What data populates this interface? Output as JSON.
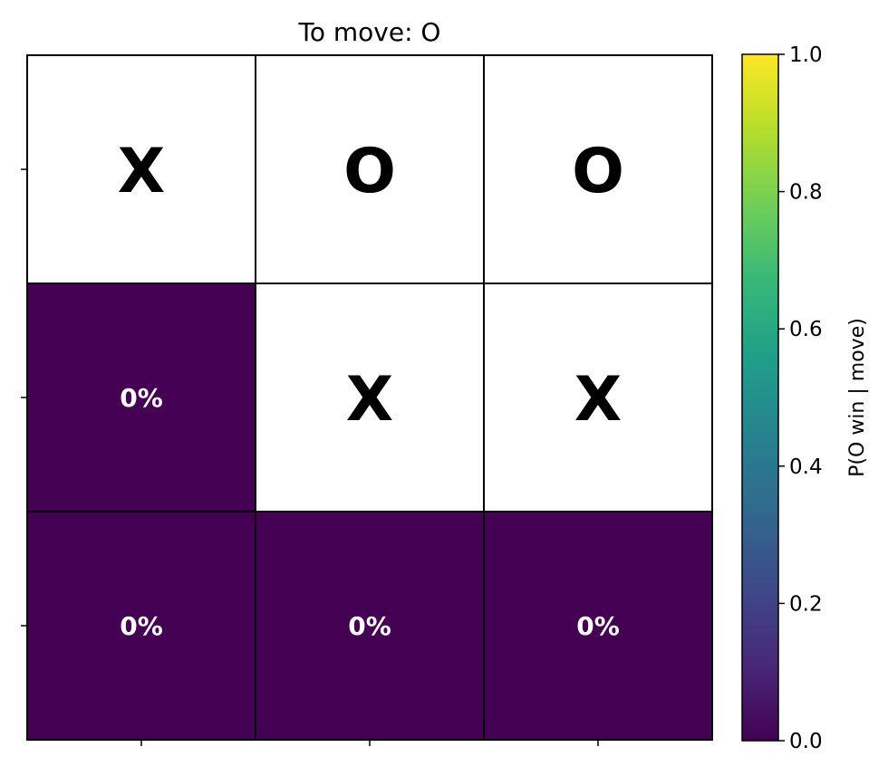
{
  "title": "To move: O",
  "colorbar": {
    "label": "P(O win | move)",
    "ticks": [
      "0.0",
      "0.2",
      "0.4",
      "0.6",
      "0.8",
      "1.0"
    ],
    "range": [
      0,
      1
    ],
    "colormap": "viridis",
    "stops": [
      "#440154",
      "#482878",
      "#3e4989",
      "#31688e",
      "#26828e",
      "#1f9e89",
      "#35b779",
      "#6ece58",
      "#b5de2b",
      "#fde725"
    ]
  },
  "board": {
    "empty_color": "#440154",
    "occupied_color": "#ffffff",
    "cells": [
      {
        "row": 0,
        "col": 0,
        "mark": "X",
        "prob": null,
        "label": ""
      },
      {
        "row": 0,
        "col": 1,
        "mark": "O",
        "prob": null,
        "label": ""
      },
      {
        "row": 0,
        "col": 2,
        "mark": "O",
        "prob": null,
        "label": ""
      },
      {
        "row": 1,
        "col": 0,
        "mark": "",
        "prob": 0.0,
        "label": "0%"
      },
      {
        "row": 1,
        "col": 1,
        "mark": "X",
        "prob": null,
        "label": ""
      },
      {
        "row": 1,
        "col": 2,
        "mark": "X",
        "prob": null,
        "label": ""
      },
      {
        "row": 2,
        "col": 0,
        "mark": "",
        "prob": 0.0,
        "label": "0%"
      },
      {
        "row": 2,
        "col": 1,
        "mark": "",
        "prob": 0.0,
        "label": "0%"
      },
      {
        "row": 2,
        "col": 2,
        "mark": "",
        "prob": 0.0,
        "label": "0%"
      }
    ]
  }
}
